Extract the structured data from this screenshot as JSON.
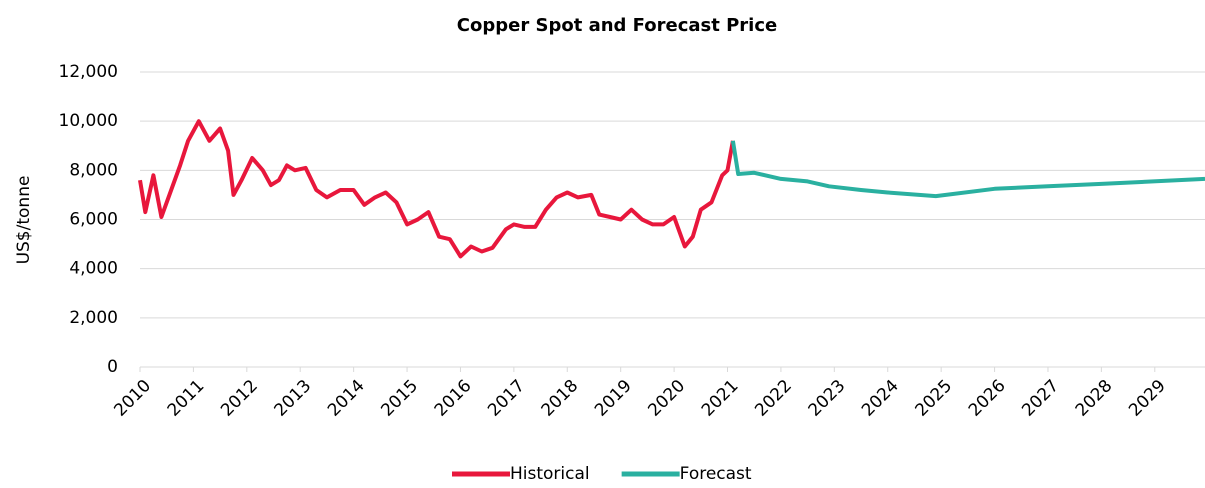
{
  "chart_data": {
    "type": "line",
    "title": "Copper Spot and Forecast Price",
    "y_label": "US$/tonne",
    "xlim": [
      2010,
      2029.94
    ],
    "xticks": [
      2010,
      2011,
      2012,
      2013,
      2014,
      2015,
      2016,
      2017,
      2018,
      2019,
      2020,
      2021,
      2022,
      2023,
      2024,
      2025,
      2026,
      2027,
      2028,
      2029
    ],
    "ylim": [
      0,
      12000
    ],
    "yticks": [
      0,
      {
        "value": 2000,
        "label": "2,000"
      },
      {
        "value": 4000,
        "label": "4,000"
      },
      {
        "value": 6000,
        "label": "6,000"
      },
      {
        "value": 8000,
        "label": "8,000"
      },
      {
        "value": 10000,
        "label": "10,000"
      },
      {
        "value": 12000,
        "label": "12,000"
      }
    ],
    "grid": true,
    "legend": "bottom",
    "series": [
      {
        "name": "Historical",
        "color": "#e8173c",
        "x": [
          2010.0,
          2010.1,
          2010.25,
          2010.4,
          2010.55,
          2010.75,
          2010.9,
          2011.1,
          2011.3,
          2011.5,
          2011.65,
          2011.75,
          2011.9,
          2012.1,
          2012.3,
          2012.45,
          2012.6,
          2012.75,
          2012.9,
          2013.1,
          2013.3,
          2013.5,
          2013.75,
          2014.0,
          2014.2,
          2014.4,
          2014.6,
          2014.8,
          2015.0,
          2015.2,
          2015.4,
          2015.6,
          2015.8,
          2016.0,
          2016.2,
          2016.4,
          2016.6,
          2016.85,
          2017.0,
          2017.2,
          2017.4,
          2017.6,
          2017.8,
          2018.0,
          2018.2,
          2018.45,
          2018.6,
          2018.8,
          2019.0,
          2019.2,
          2019.4,
          2019.6,
          2019.8,
          2020.0,
          2020.2,
          2020.35,
          2020.5,
          2020.7,
          2020.9,
          2021.0,
          2021.1
        ],
        "values": [
          7600,
          6300,
          7800,
          6100,
          7000,
          8200,
          9200,
          10000,
          9200,
          9700,
          8800,
          7000,
          7600,
          8500,
          8000,
          7400,
          7600,
          8200,
          8000,
          8100,
          7200,
          6900,
          7200,
          7200,
          6600,
          6900,
          7100,
          6700,
          5800,
          6000,
          6300,
          5300,
          5200,
          4500,
          4900,
          4700,
          4850,
          5600,
          5800,
          5700,
          5700,
          6400,
          6900,
          7100,
          6900,
          7000,
          6200,
          6100,
          6000,
          6400,
          6000,
          5800,
          5800,
          6100,
          4900,
          5300,
          6400,
          6700,
          7800,
          8000,
          9200
        ]
      },
      {
        "name": "Forecast",
        "color": "#2ab0a0",
        "x": [
          2021.1,
          2021.2,
          2021.5,
          2022.0,
          2022.5,
          2022.9,
          2023.5,
          2024.0,
          2024.9,
          2026.0,
          2027.0,
          2028.0,
          2029.94
        ],
        "values": [
          9200,
          7850,
          7900,
          7650,
          7550,
          7350,
          7200,
          7100,
          6950,
          7250,
          7350,
          7450,
          7650
        ]
      }
    ]
  }
}
